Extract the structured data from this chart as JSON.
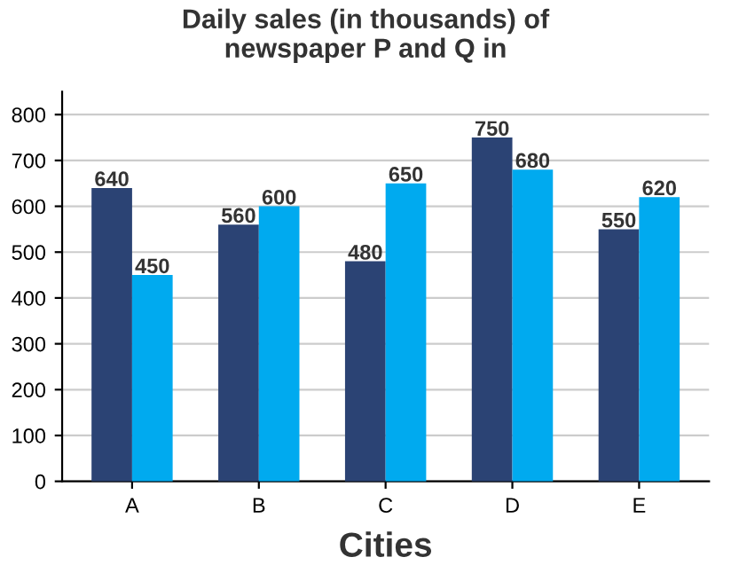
{
  "chart_data": {
    "type": "bar",
    "title": "Daily sales (in thousands) of\nnewspaper P and Q in",
    "xlabel": "Cities",
    "categories": [
      "A",
      "B",
      "C",
      "D",
      "E"
    ],
    "series": [
      {
        "color": "#2b4374",
        "values": [
          640,
          560,
          480,
          750,
          550
        ]
      },
      {
        "color": "#00aaef",
        "values": [
          450,
          600,
          650,
          680,
          620
        ]
      }
    ],
    "ylim": [
      0,
      850
    ],
    "yticks": [
      0,
      100,
      200,
      300,
      400,
      500,
      600,
      700,
      800
    ],
    "grid": "y",
    "data_labels": true
  }
}
